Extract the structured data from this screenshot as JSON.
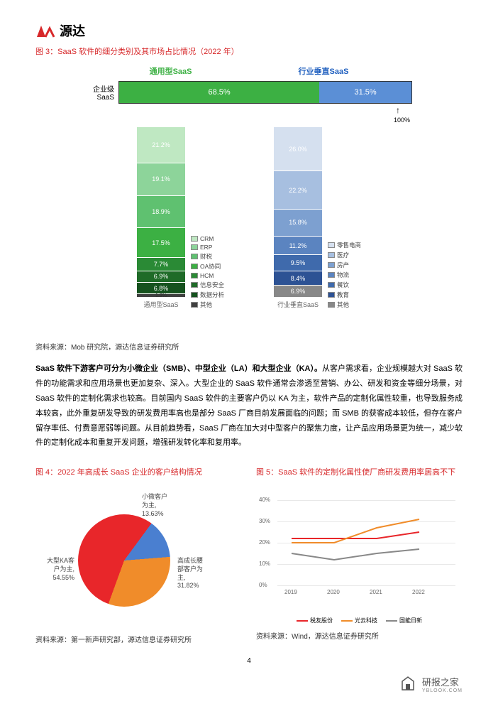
{
  "logo_text": "源达",
  "fig3_title": "图 3：SaaS 软件的细分类别及其市场占比情况（2022 年）",
  "fig3_source": "资料来源：Mob 研究院，源达信息证券研究所",
  "top_label_general": "通用型SaaS",
  "top_label_vertical": "行业垂直SaaS",
  "hbar_label": "企业级\nSaaS",
  "hbar": {
    "segments": [
      {
        "value": 68.5,
        "label": "68.5%",
        "color": "#3cb043"
      },
      {
        "value": 31.5,
        "label": "31.5%",
        "color": "#5b8fd6"
      }
    ],
    "mark_100": "100%"
  },
  "stack_general": {
    "label": "通用型SaaS",
    "segments": [
      {
        "value": 21.2,
        "label": "21.2%",
        "color": "#bfe8c2"
      },
      {
        "value": 19.1,
        "label": "19.1%",
        "color": "#8dd49a"
      },
      {
        "value": 18.9,
        "label": "18.9%",
        "color": "#5fc170"
      },
      {
        "value": 17.5,
        "label": "17.5%",
        "color": "#3cb043"
      },
      {
        "value": 7.7,
        "label": "7.7%",
        "color": "#2a8a35"
      },
      {
        "value": 6.9,
        "label": "6.9%",
        "color": "#1f6b28"
      },
      {
        "value": 6.8,
        "label": "6.8%",
        "color": "#15521e"
      },
      {
        "value": 1.9,
        "label": "1.9%",
        "color": "#404040"
      }
    ],
    "legend": [
      {
        "label": "CRM",
        "color": "#bfe8c2"
      },
      {
        "label": "ERP",
        "color": "#8dd49a"
      },
      {
        "label": "财税",
        "color": "#5fc170"
      },
      {
        "label": "OA协同",
        "color": "#3cb043"
      },
      {
        "label": "HCM",
        "color": "#2a8a35"
      },
      {
        "label": "信息安全",
        "color": "#1f6b28"
      },
      {
        "label": "数据分析",
        "color": "#15521e"
      },
      {
        "label": "其他",
        "color": "#404040"
      }
    ]
  },
  "stack_vertical": {
    "label": "行业垂直SaaS",
    "segments": [
      {
        "value": 26.0,
        "label": "26.0%",
        "color": "#d5e0ef"
      },
      {
        "value": 22.2,
        "label": "22.2%",
        "color": "#a7bfe0"
      },
      {
        "value": 15.8,
        "label": "15.8%",
        "color": "#7da0d0"
      },
      {
        "value": 11.2,
        "label": "11.2%",
        "color": "#5b84c0"
      },
      {
        "value": 9.5,
        "label": "9.5%",
        "color": "#3f6aac"
      },
      {
        "value": 8.4,
        "label": "8.4%",
        "color": "#2d5294"
      },
      {
        "value": 6.9,
        "label": "6.9%",
        "color": "#888888"
      }
    ],
    "legend": [
      {
        "label": "零售电商",
        "color": "#d5e0ef"
      },
      {
        "label": "医疗",
        "color": "#a7bfe0"
      },
      {
        "label": "房产",
        "color": "#7da0d0"
      },
      {
        "label": "物流",
        "color": "#5b84c0"
      },
      {
        "label": "餐饮",
        "color": "#3f6aac"
      },
      {
        "label": "教育",
        "color": "#2d5294"
      },
      {
        "label": "其他",
        "color": "#888888"
      }
    ]
  },
  "body": "SaaS 软件下游客户可分为小微企业（SMB）、中型企业（LA）和大型企业（KA）。从客户需求看，企业规模越大对 SaaS 软件的功能需求和应用场景也更加复杂、深入。大型企业的 SaaS 软件通常会渗透至营销、办公、研发和资金等细分场景，对 SaaS 软件的定制化需求也较高。目前国内 SaaS 软件的主要客户仍以 KA 为主，软件产品的定制化属性较重，也导致服务成本较高，此外重复研发导致的研发费用率高也是部分 SaaS 厂商目前发展面临的问题；而 SMB 的获客成本较低，但存在客户留存率低、付费意愿弱等问题。从目前趋势看，SaaS 厂商在加大对中型客户的聚焦力度，让产品应用场景更为统一，减少软件的定制化成本和重复开发问题，增强研发转化率和复用率。",
  "body_bold_prefix": "SaaS 软件下游客户可分为小微企业（SMB）、中型企业（LA）和大型企业（KA）。",
  "fig4_title": "图 4：2022 年高成长 SaaS 企业的客户结构情况",
  "fig4_source": "资料来源：第一新声研究部，源达信息证券研究所",
  "pie": {
    "slices": [
      {
        "label": "大型KA客\n户为主,\n54.55%",
        "value": 54.55,
        "color": "#e8262a"
      },
      {
        "label": "小微客户\n为主,\n13.63%",
        "value": 13.63,
        "color": "#4a7fd0"
      },
      {
        "label": "高成长腰\n部客户为\n主,\n31.82%",
        "value": 31.82,
        "color": "#f08c2a"
      }
    ]
  },
  "fig5_title": "图 5：SaaS 软件的定制化属性使厂商研发费用率居高不下",
  "fig5_source": "资料来源：Wind，源达信息证券研究所",
  "line": {
    "ylim": [
      0,
      40
    ],
    "yticks": [
      "0%",
      "10%",
      "20%",
      "30%",
      "40%"
    ],
    "xlabels": [
      "2019",
      "2020",
      "2021",
      "2022"
    ],
    "series": [
      {
        "name": "税友股份",
        "color": "#e8262a",
        "values": [
          22,
          22,
          22,
          25
        ]
      },
      {
        "name": "光云科技",
        "color": "#f08c2a",
        "values": [
          20,
          20,
          27,
          31
        ]
      },
      {
        "name": "国能日新",
        "color": "#888888",
        "values": [
          15,
          12,
          15,
          17
        ]
      }
    ]
  },
  "page_number": "4",
  "watermark_text": "研报之家",
  "watermark_sub": "YBLOOK.COM"
}
